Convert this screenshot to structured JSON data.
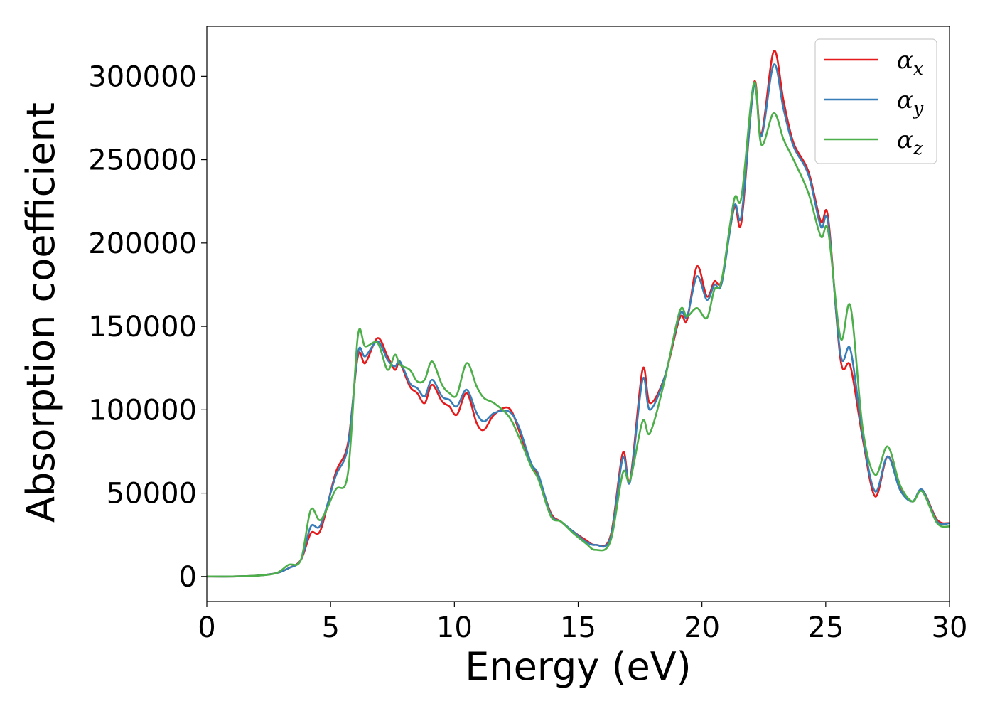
{
  "chart_data": {
    "type": "line",
    "title": "",
    "xlabel": "Energy (eV)",
    "ylabel": "Absorption coefficient",
    "xlim": [
      0,
      30
    ],
    "ylim": [
      -15000,
      330000
    ],
    "xticks": [
      0,
      5,
      10,
      15,
      20,
      25,
      30
    ],
    "yticks": [
      0,
      50000,
      100000,
      150000,
      200000,
      250000,
      300000
    ],
    "grid": false,
    "legend": "top-right",
    "series": [
      {
        "name": "αx",
        "base": "α",
        "sub": "x",
        "color": "#e41a1c",
        "points": [
          [
            0,
            0
          ],
          [
            1,
            0
          ],
          [
            2,
            500
          ],
          [
            2.8,
            2000
          ],
          [
            3.3,
            5000
          ],
          [
            3.8,
            10000
          ],
          [
            4.2,
            26000
          ],
          [
            4.6,
            28000
          ],
          [
            5.2,
            62000
          ],
          [
            5.7,
            80000
          ],
          [
            6.1,
            132000
          ],
          [
            6.4,
            128000
          ],
          [
            6.9,
            143000
          ],
          [
            7.3,
            132000
          ],
          [
            7.6,
            124000
          ],
          [
            7.8,
            128000
          ],
          [
            8.2,
            114000
          ],
          [
            8.5,
            110000
          ],
          [
            8.8,
            104000
          ],
          [
            9.1,
            115000
          ],
          [
            9.5,
            105000
          ],
          [
            9.8,
            102000
          ],
          [
            10.1,
            97000
          ],
          [
            10.5,
            110000
          ],
          [
            10.9,
            92000
          ],
          [
            11.2,
            88000
          ],
          [
            11.6,
            97000
          ],
          [
            12.2,
            101000
          ],
          [
            12.6,
            88000
          ],
          [
            13.1,
            67000
          ],
          [
            13.4,
            60000
          ],
          [
            13.9,
            38000
          ],
          [
            14.3,
            33000
          ],
          [
            14.8,
            27000
          ],
          [
            15.3,
            22000
          ],
          [
            15.7,
            19000
          ],
          [
            16.3,
            24000
          ],
          [
            16.8,
            74000
          ],
          [
            17.1,
            58000
          ],
          [
            17.6,
            124000
          ],
          [
            17.9,
            104000
          ],
          [
            18.5,
            120000
          ],
          [
            19.1,
            155000
          ],
          [
            19.4,
            154000
          ],
          [
            19.8,
            186000
          ],
          [
            20.2,
            168000
          ],
          [
            20.5,
            177000
          ],
          [
            20.8,
            178000
          ],
          [
            21.3,
            221000
          ],
          [
            21.6,
            213000
          ],
          [
            22.1,
            296000
          ],
          [
            22.4,
            265000
          ],
          [
            22.9,
            315000
          ],
          [
            23.3,
            285000
          ],
          [
            23.7,
            260000
          ],
          [
            24.3,
            243000
          ],
          [
            24.8,
            213000
          ],
          [
            25.1,
            215000
          ],
          [
            25.6,
            130000
          ],
          [
            26.0,
            126000
          ],
          [
            26.5,
            82000
          ],
          [
            27.0,
            48000
          ],
          [
            27.5,
            72000
          ],
          [
            28.0,
            53000
          ],
          [
            28.5,
            45000
          ],
          [
            28.9,
            52000
          ],
          [
            29.5,
            34000
          ],
          [
            30,
            32000
          ]
        ]
      },
      {
        "name": "αy",
        "base": "α",
        "sub": "y",
        "color": "#377eb8",
        "points": [
          [
            0,
            0
          ],
          [
            1,
            0
          ],
          [
            2,
            500
          ],
          [
            2.8,
            2000
          ],
          [
            3.3,
            5000
          ],
          [
            3.8,
            10000
          ],
          [
            4.2,
            30000
          ],
          [
            4.6,
            31000
          ],
          [
            5.2,
            60000
          ],
          [
            5.7,
            78000
          ],
          [
            6.1,
            134000
          ],
          [
            6.4,
            132000
          ],
          [
            6.9,
            141000
          ],
          [
            7.3,
            130000
          ],
          [
            7.6,
            126000
          ],
          [
            7.8,
            129000
          ],
          [
            8.2,
            116000
          ],
          [
            8.5,
            113000
          ],
          [
            8.8,
            108000
          ],
          [
            9.1,
            118000
          ],
          [
            9.5,
            108000
          ],
          [
            9.8,
            106000
          ],
          [
            10.1,
            102000
          ],
          [
            10.5,
            112000
          ],
          [
            10.9,
            98000
          ],
          [
            11.2,
            93000
          ],
          [
            11.6,
            98000
          ],
          [
            12.2,
            99000
          ],
          [
            12.6,
            90000
          ],
          [
            13.1,
            68000
          ],
          [
            13.4,
            61000
          ],
          [
            13.9,
            37000
          ],
          [
            14.3,
            33000
          ],
          [
            14.8,
            27000
          ],
          [
            15.3,
            21000
          ],
          [
            15.7,
            19000
          ],
          [
            16.3,
            23000
          ],
          [
            16.8,
            71000
          ],
          [
            17.1,
            57000
          ],
          [
            17.6,
            118000
          ],
          [
            17.9,
            100000
          ],
          [
            18.5,
            120000
          ],
          [
            19.1,
            157000
          ],
          [
            19.4,
            156000
          ],
          [
            19.8,
            180000
          ],
          [
            20.2,
            166000
          ],
          [
            20.5,
            175000
          ],
          [
            20.8,
            176000
          ],
          [
            21.3,
            222000
          ],
          [
            21.6,
            217000
          ],
          [
            22.1,
            294000
          ],
          [
            22.4,
            264000
          ],
          [
            22.9,
            307000
          ],
          [
            23.3,
            280000
          ],
          [
            23.7,
            258000
          ],
          [
            24.3,
            241000
          ],
          [
            24.8,
            210000
          ],
          [
            25.1,
            212000
          ],
          [
            25.6,
            133000
          ],
          [
            26.0,
            136000
          ],
          [
            26.5,
            84000
          ],
          [
            27.0,
            51000
          ],
          [
            27.5,
            72000
          ],
          [
            28.0,
            52000
          ],
          [
            28.5,
            45000
          ],
          [
            28.9,
            52000
          ],
          [
            29.5,
            33000
          ],
          [
            30,
            32000
          ]
        ]
      },
      {
        "name": "αz",
        "base": "α",
        "sub": "z",
        "color": "#4daf4a",
        "points": [
          [
            0,
            0
          ],
          [
            1,
            0
          ],
          [
            2,
            500
          ],
          [
            2.8,
            2000
          ],
          [
            3.3,
            7000
          ],
          [
            3.8,
            10000
          ],
          [
            4.2,
            40000
          ],
          [
            4.6,
            34000
          ],
          [
            5.2,
            52000
          ],
          [
            5.7,
            62000
          ],
          [
            6.1,
            144000
          ],
          [
            6.4,
            138000
          ],
          [
            6.9,
            140000
          ],
          [
            7.3,
            124000
          ],
          [
            7.6,
            133000
          ],
          [
            7.8,
            127000
          ],
          [
            8.2,
            124000
          ],
          [
            8.5,
            117000
          ],
          [
            8.8,
            118000
          ],
          [
            9.1,
            129000
          ],
          [
            9.5,
            115000
          ],
          [
            9.8,
            110000
          ],
          [
            10.1,
            109000
          ],
          [
            10.5,
            128000
          ],
          [
            10.9,
            114000
          ],
          [
            11.2,
            107000
          ],
          [
            11.6,
            104000
          ],
          [
            12.2,
            96000
          ],
          [
            12.6,
            84000
          ],
          [
            13.1,
            66000
          ],
          [
            13.4,
            58000
          ],
          [
            13.9,
            36000
          ],
          [
            14.3,
            33000
          ],
          [
            14.8,
            26000
          ],
          [
            15.3,
            20000
          ],
          [
            15.7,
            16000
          ],
          [
            16.3,
            21000
          ],
          [
            16.8,
            62000
          ],
          [
            17.1,
            58000
          ],
          [
            17.6,
            93000
          ],
          [
            17.9,
            86000
          ],
          [
            18.5,
            118000
          ],
          [
            19.1,
            159000
          ],
          [
            19.4,
            156000
          ],
          [
            19.8,
            161000
          ],
          [
            20.2,
            155000
          ],
          [
            20.5,
            172000
          ],
          [
            20.8,
            178000
          ],
          [
            21.3,
            226000
          ],
          [
            21.6,
            228000
          ],
          [
            22.1,
            296000
          ],
          [
            22.4,
            259000
          ],
          [
            22.9,
            278000
          ],
          [
            23.3,
            262000
          ],
          [
            23.7,
            250000
          ],
          [
            24.3,
            230000
          ],
          [
            24.8,
            204000
          ],
          [
            25.1,
            207000
          ],
          [
            25.6,
            143000
          ],
          [
            26.0,
            162000
          ],
          [
            26.5,
            88000
          ],
          [
            27.0,
            61000
          ],
          [
            27.5,
            78000
          ],
          [
            28.0,
            55000
          ],
          [
            28.5,
            45000
          ],
          [
            28.9,
            51000
          ],
          [
            29.5,
            32000
          ],
          [
            30,
            30000
          ]
        ]
      }
    ]
  }
}
